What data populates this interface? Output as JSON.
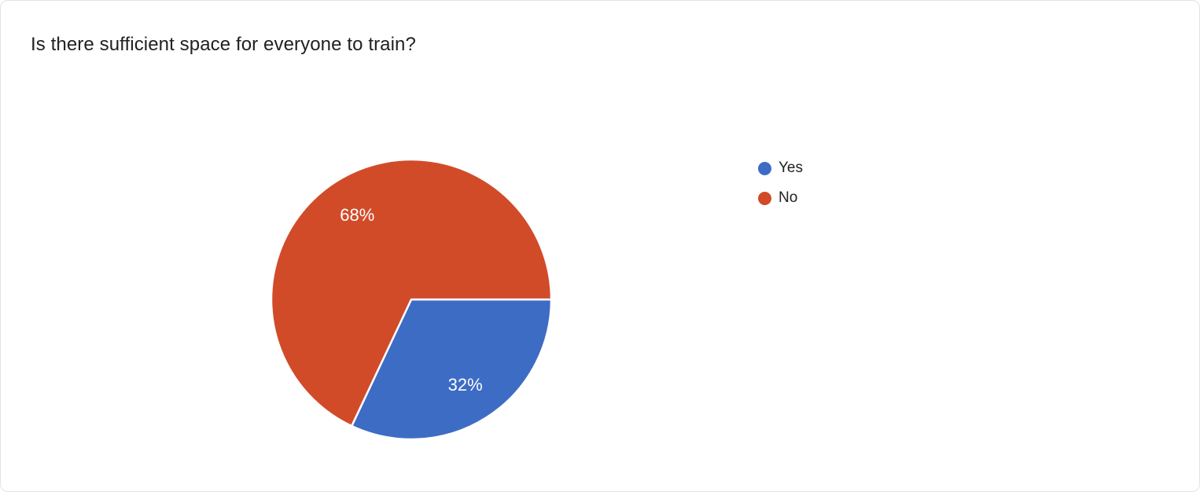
{
  "chart_data": {
    "type": "pie",
    "title": "Is there sufficient space for everyone to train?",
    "slices": [
      {
        "label": "Yes",
        "value": 32,
        "display": "32%",
        "color": "#3d6cc5"
      },
      {
        "label": "No",
        "value": 68,
        "display": "68%",
        "color": "#d14b29"
      }
    ],
    "start_angle_deg": 0,
    "direction": "clockwise",
    "legend_position": "right",
    "slice_label_color": "#ffffff",
    "title_color": "#202124"
  }
}
